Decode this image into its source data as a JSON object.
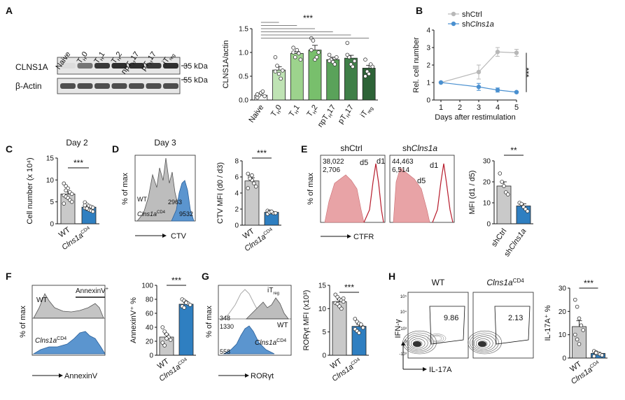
{
  "panels": {
    "A": {
      "letter": "A",
      "blot": {
        "lanes": [
          "Naive",
          "TH0",
          "TH1",
          "TH2",
          "npTH17",
          "pTH17",
          "iTreg"
        ],
        "lane_labels": [
          {
            "main": "Naive",
            "sub": ""
          },
          {
            "main": "T",
            "sub": "H",
            "tail": "0"
          },
          {
            "main": "T",
            "sub": "H",
            "tail": "1"
          },
          {
            "main": "T",
            "sub": "H",
            "tail": "2"
          },
          {
            "main": "npT",
            "sub": "H",
            "tail": "17"
          },
          {
            "main": "pT",
            "sub": "H",
            "tail": "17"
          },
          {
            "main": "iT",
            "sub": "reg",
            "tail": ""
          }
        ],
        "rows": [
          "CLNS1A",
          "β-Actin"
        ],
        "kda": [
          "35 kDa",
          "55 kDa"
        ],
        "clns1a_intensity": [
          0.05,
          0.55,
          0.85,
          0.9,
          0.9,
          0.85,
          0.9
        ],
        "actin_intensity": [
          0.8,
          0.8,
          0.8,
          0.8,
          0.8,
          0.8,
          0.8
        ]
      }
    },
    "B": {
      "letter": "B"
    },
    "C": {
      "letter": "C",
      "title": "Day 2"
    },
    "D": {
      "letter": "D",
      "title": "Day 3",
      "hist_ylabel": "% of max",
      "hist_xlabel": "CTV",
      "wt_label": "WT",
      "ko_label": "Clns1a",
      "ko_sup": "CD4",
      "wt_value": "2963",
      "ko_value": "9532"
    },
    "E": {
      "letter": "E",
      "ctrl_title": "shCtrl",
      "sh_title_pre": "sh",
      "sh_title_it": "Clns1a",
      "hist_ylabel": "% of max",
      "hist_xlabel": "CTFR",
      "ctrl_d1": "38,022",
      "ctrl_d5": "2,706",
      "sh_d1": "44,463",
      "sh_d5": "6,514",
      "d1_label": "d1",
      "d5_label": "d5"
    },
    "F": {
      "letter": "F",
      "hist_ylabel": "% of max",
      "hist_xlabel": "AnnexinV",
      "wt_label": "WT",
      "ko_label": "Clns1a",
      "ko_sup": "CD4",
      "gate_label": "AnnexinV",
      "gate_sup": "+"
    },
    "G": {
      "letter": "G",
      "hist_ylabel": "% of max",
      "hist_xlabel": "RORγt",
      "itreg_label": "iT",
      "itreg_sub": "reg",
      "wt_label": "WT",
      "ko_label": "Clns1a",
      "ko_sup": "CD4",
      "v1": "348",
      "v2": "1330",
      "v3": "558"
    },
    "H": {
      "letter": "H",
      "wt_title": "WT",
      "ko_title": "Clns1a",
      "ko_sup": "CD4",
      "ylabel": "IFN-γ",
      "xlabel": "IL-17A",
      "wt_pct": "9.86",
      "ko_pct": "2.13",
      "ytick_labels": [
        "10⁵",
        "10⁴",
        "10³",
        "0",
        "-10³"
      ]
    }
  },
  "chart_data": [
    {
      "id": "A-bar",
      "type": "bar",
      "ylabel": "CLNS1A/actin",
      "ylim": [
        0,
        1.5
      ],
      "yticks": [
        "0.0",
        "0.5",
        "1.0",
        "1.5"
      ],
      "categories": [
        "Naive",
        "TH0",
        "TH1",
        "TH2",
        "npTH17",
        "pTH17",
        "iTreg"
      ],
      "category_labels": [
        {
          "main": "Naive",
          "sub": ""
        },
        {
          "main": "T",
          "sub": "H",
          "tail": "0"
        },
        {
          "main": "T",
          "sub": "H",
          "tail": "1"
        },
        {
          "main": "T",
          "sub": "H",
          "tail": "2"
        },
        {
          "main": "npT",
          "sub": "H",
          "tail": "17"
        },
        {
          "main": "pT",
          "sub": "H",
          "tail": "17"
        },
        {
          "main": "iT",
          "sub": "reg",
          "tail": ""
        }
      ],
      "values": [
        0.1,
        0.63,
        0.98,
        1.05,
        0.85,
        0.88,
        0.67
      ],
      "errors": [
        0.04,
        0.07,
        0.04,
        0.1,
        0.05,
        0.06,
        0.06
      ],
      "colors": [
        "#ffffff",
        "#bfe3b4",
        "#9dd38d",
        "#78bf6c",
        "#5aa25a",
        "#3f7f48",
        "#2d6337"
      ],
      "points": [
        [
          0.05,
          0.1,
          0.15,
          0.18,
          0.08,
          0.12
        ],
        [
          0.9,
          0.72,
          0.55,
          0.45,
          0.62,
          0.6
        ],
        [
          1.1,
          0.9,
          1.05,
          0.98,
          0.85,
          1.0
        ],
        [
          1.3,
          1.25,
          0.85,
          0.9,
          1.0,
          1.05
        ],
        [
          0.95,
          0.85,
          0.8,
          0.75,
          0.9,
          0.82
        ],
        [
          1.2,
          0.9,
          0.75,
          0.7,
          0.82,
          0.95
        ],
        [
          0.85,
          0.6,
          0.55,
          0.75,
          0.7,
          0.5
        ]
      ],
      "significance": "***"
    },
    {
      "id": "B-line",
      "type": "line",
      "ylabel": "Rel. cell number",
      "xlabel": "Days after restimulation",
      "x": [
        1,
        3,
        4,
        5
      ],
      "xticks": [
        "1",
        "2",
        "3",
        "4",
        "5"
      ],
      "yticks": [
        "0",
        "1",
        "2",
        "3",
        "4"
      ],
      "ylim": [
        0,
        4
      ],
      "series": [
        {
          "name": "shCtrl",
          "name_plain": "sh",
          "name_it": "Ctrl",
          "values": [
            1.0,
            1.6,
            2.75,
            2.7
          ],
          "errors": [
            0,
            0.4,
            0.25,
            0.2
          ],
          "color": "#b8b8b8"
        },
        {
          "name": "shClns1a",
          "name_plain": "sh",
          "name_it": "Clns1a",
          "values": [
            1.0,
            0.75,
            0.57,
            0.45
          ],
          "errors": [
            0,
            0.2,
            0.12,
            0.05
          ],
          "color": "#4a90d0"
        }
      ],
      "significance": "***"
    },
    {
      "id": "C-bar",
      "type": "bar",
      "ylabel": "Cell number (x 10⁴)",
      "ylim": [
        0,
        15
      ],
      "yticks": [
        "0",
        "5",
        "10",
        "15"
      ],
      "categories": [
        "WT",
        "Clns1aCD4"
      ],
      "values": [
        6.8,
        3.8
      ],
      "errors": [
        0.5,
        0.3
      ],
      "colors": [
        "#c9c9c9",
        "#2f7fc1"
      ],
      "points": [
        [
          9.2,
          8.6,
          8.1,
          7.2,
          6.8,
          6.5,
          6.2,
          5.9,
          5.4,
          5.0,
          4.6,
          7.6
        ],
        [
          4.9,
          4.4,
          4.1,
          3.9,
          3.7,
          3.6,
          3.4,
          3.2,
          3.0,
          2.8,
          4.2,
          3.5
        ]
      ],
      "significance": "***"
    },
    {
      "id": "D-bar",
      "type": "bar",
      "ylabel": "CTV MFI (d0 / d3)",
      "ylim": [
        0,
        8
      ],
      "yticks": [
        "0",
        "2",
        "4",
        "6",
        "8"
      ],
      "categories": [
        "WT",
        "Clns1aCD4"
      ],
      "values": [
        5.5,
        1.6
      ],
      "errors": [
        0.4,
        0.1
      ],
      "colors": [
        "#c9c9c9",
        "#2f7fc1"
      ],
      "points": [
        [
          6.4,
          6.0,
          5.6,
          5.2,
          4.8,
          4.6,
          5.8,
          6.2
        ],
        [
          1.8,
          1.7,
          1.6,
          1.5,
          1.5,
          1.4,
          1.6,
          1.7
        ]
      ],
      "significance": "***"
    },
    {
      "id": "E-bar",
      "type": "bar",
      "ylabel": "MFI (d1 / d5)",
      "ylim": [
        0,
        30
      ],
      "yticks": [
        "0",
        "10",
        "20",
        "30"
      ],
      "categories": [
        "shCtrl",
        "shClns1a"
      ],
      "values": [
        18,
        8.5
      ],
      "errors": [
        2,
        1
      ],
      "colors": [
        "#c9c9c9",
        "#2f7fc1"
      ],
      "points": [
        [
          24,
          20,
          18,
          15,
          14
        ],
        [
          10,
          9.5,
          8,
          7,
          6
        ]
      ],
      "significance": "**"
    },
    {
      "id": "F-bar",
      "type": "bar",
      "ylabel": "AnnexinV⁺ %",
      "ylim": [
        0,
        100
      ],
      "yticks": [
        "0",
        "20",
        "40",
        "60",
        "80",
        "100"
      ],
      "categories": [
        "WT",
        "Clns1aCD4"
      ],
      "values": [
        26,
        73
      ],
      "errors": [
        4,
        2
      ],
      "colors": [
        "#c9c9c9",
        "#2f7fc1"
      ],
      "points": [
        [
          40,
          34,
          30,
          26,
          22,
          18,
          14,
          24
        ],
        [
          80,
          78,
          76,
          74,
          72,
          70,
          68,
          75
        ]
      ],
      "significance": "***"
    },
    {
      "id": "G-bar",
      "type": "bar",
      "ylabel": "RORγt MFI (x10³)",
      "ylim": [
        0,
        15
      ],
      "yticks": [
        "0",
        "5",
        "10",
        "15"
      ],
      "categories": [
        "WT",
        "Clns1aCD4"
      ],
      "values": [
        11.5,
        6.2
      ],
      "errors": [
        0.4,
        0.4
      ],
      "colors": [
        "#c9c9c9",
        "#2f7fc1"
      ],
      "points": [
        [
          13,
          12.5,
          12,
          11.8,
          11.5,
          11.2,
          11,
          10.5,
          10,
          12.2
        ],
        [
          7.8,
          7.2,
          6.8,
          6.4,
          6.0,
          5.6,
          5.2,
          4.8,
          6.6,
          5.9
        ]
      ],
      "significance": "***"
    },
    {
      "id": "H-bar",
      "type": "bar",
      "ylabel": "IL-17A⁺ %",
      "ylim": [
        0,
        30
      ],
      "yticks": [
        "0",
        "10",
        "20",
        "30"
      ],
      "categories": [
        "WT",
        "Clns1aCD4"
      ],
      "values": [
        13.5,
        2
      ],
      "errors": [
        2.5,
        0.5
      ],
      "colors": [
        "#c9c9c9",
        "#2f7fc1"
      ],
      "points": [
        [
          25,
          22,
          17,
          14,
          12,
          10,
          8,
          6
        ],
        [
          3,
          2.5,
          2,
          1.6,
          1.2,
          0.8,
          2.2
        ]
      ],
      "significance": "***"
    }
  ]
}
